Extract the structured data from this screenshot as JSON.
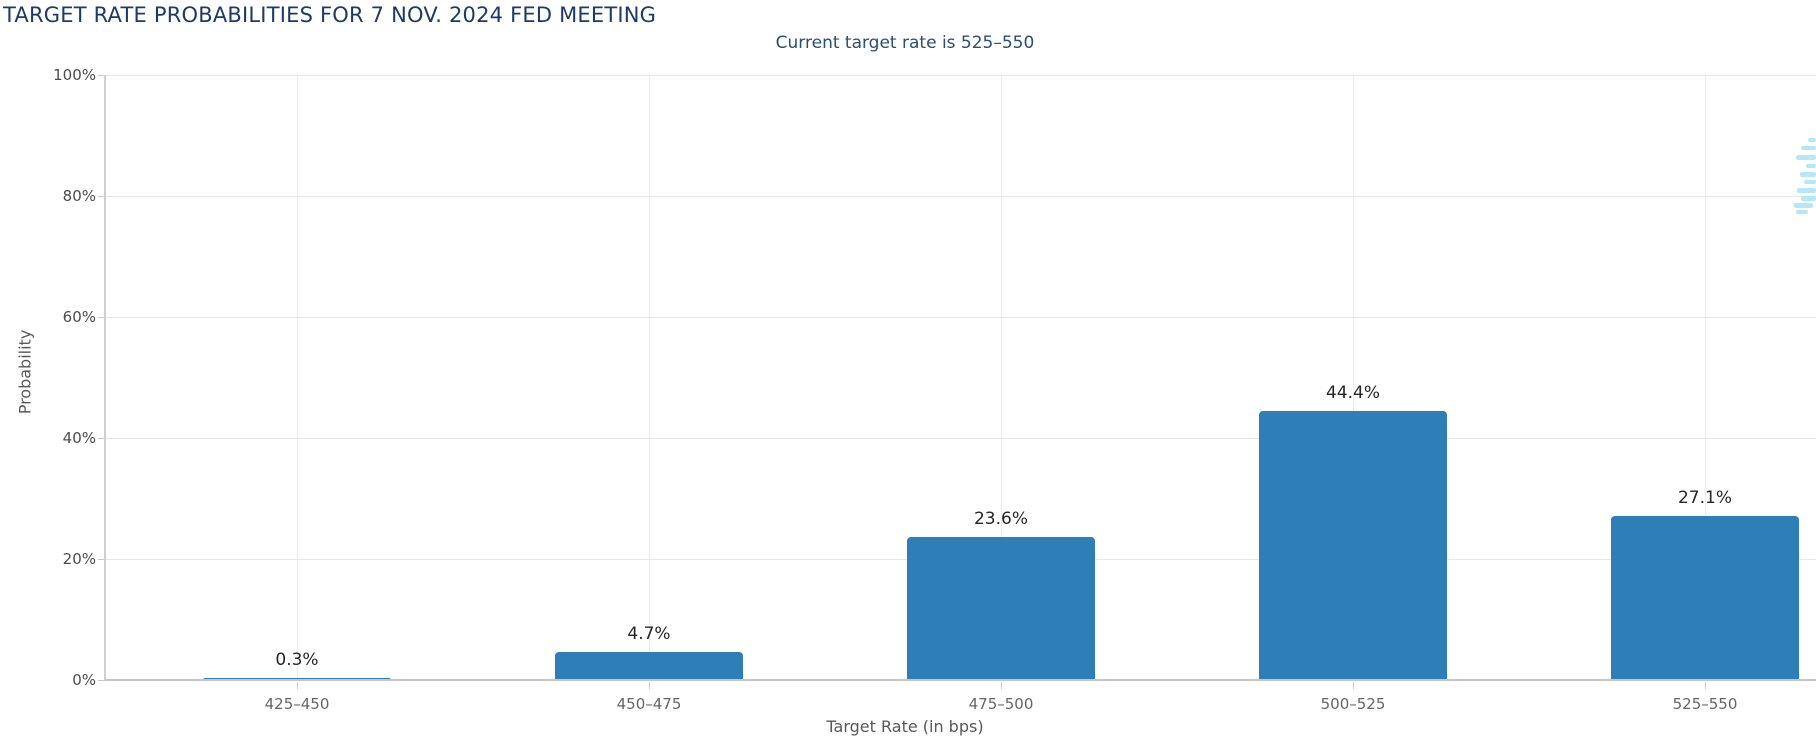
{
  "chart_data": {
    "type": "bar",
    "title": "TARGET RATE PROBABILITIES FOR 7 NOV. 2024 FED MEETING",
    "subtitle": "Current target rate is 525–550",
    "categories": [
      "425–450",
      "450–475",
      "475–500",
      "500–525",
      "525–550"
    ],
    "values": [
      0.3,
      4.7,
      23.6,
      44.4,
      27.1
    ],
    "bar_labels": [
      "0.3%",
      "4.7%",
      "23.6%",
      "44.4%",
      "27.1%"
    ],
    "xlabel": "Target Rate (in bps)",
    "ylabel": "Probability",
    "ylim": [
      0,
      100
    ],
    "yticks": [
      0,
      20,
      40,
      60,
      80,
      100
    ],
    "ytick_labels": [
      "0%",
      "20%",
      "40%",
      "60%",
      "80%",
      "100%"
    ],
    "grid": true,
    "legend": false,
    "bar_color": "#2e7fb8"
  },
  "colors": {
    "title": "#1e3a66",
    "subtitle": "#2c4e70",
    "bar": "#2e7fb8",
    "watermark": "#b5e8f6"
  }
}
